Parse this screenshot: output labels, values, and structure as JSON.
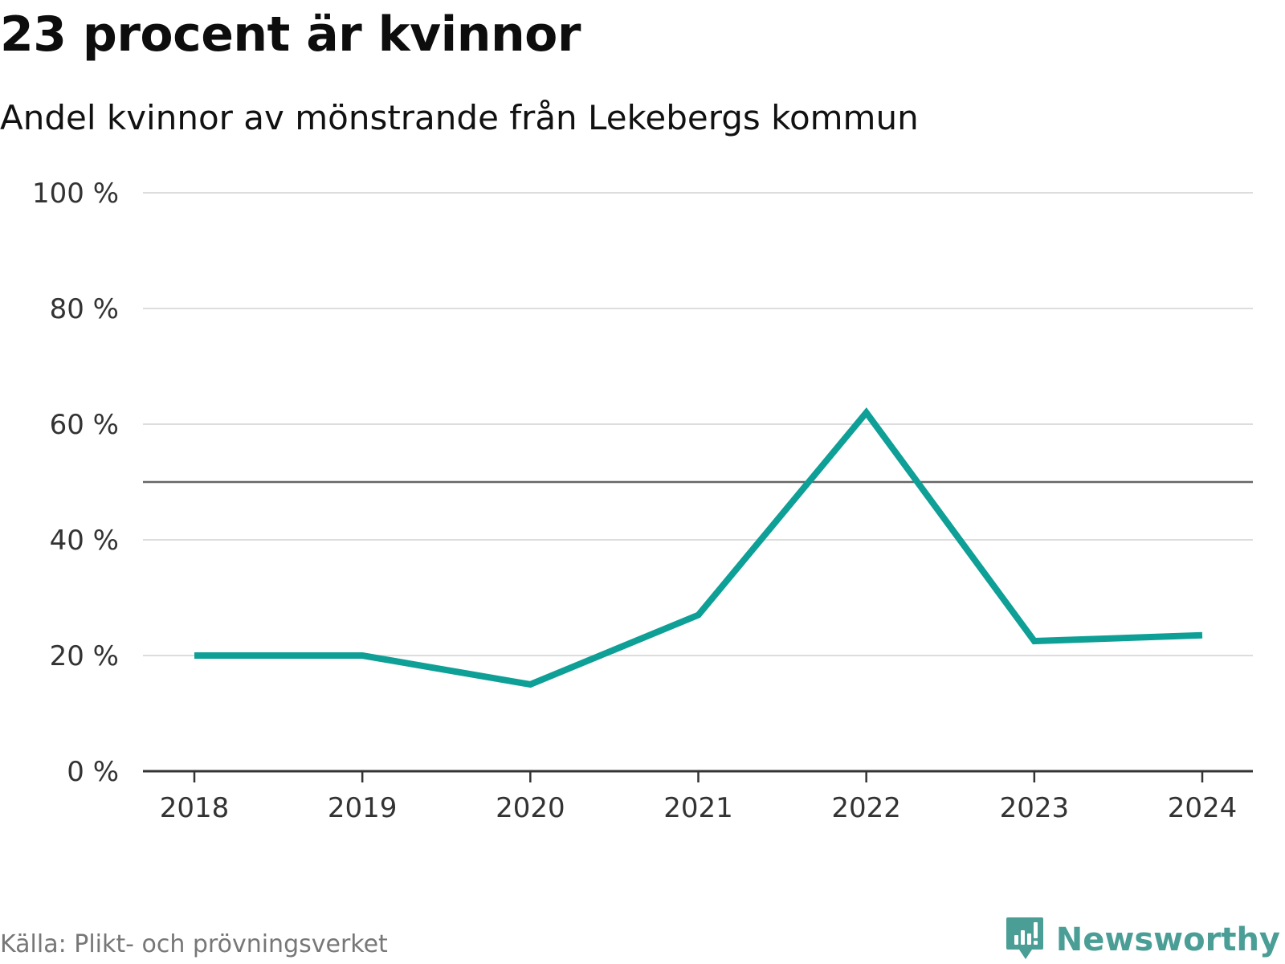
{
  "title": "23 procent är kvinnor",
  "subtitle": "Andel kvinnor av mönstrande från Lekebergs kommun",
  "source": "Källa: Plikt- och prövningsverket",
  "brand": {
    "name": "Newsworthy",
    "logo_icon": "bar-chart-speech-bubble-icon",
    "color": "#4a9e96"
  },
  "colors": {
    "series": "#0e9f96",
    "grid": "#dddddd",
    "reference": "#666666",
    "axis": "#333333"
  },
  "chart_data": {
    "type": "line",
    "title": "23 procent är kvinnor",
    "subtitle": "Andel kvinnor av mönstrande från Lekebergs kommun",
    "xlabel": "",
    "ylabel": "",
    "categories": [
      "2018",
      "2019",
      "2020",
      "2021",
      "2022",
      "2023",
      "2024"
    ],
    "series": [
      {
        "name": "Andel kvinnor",
        "values": [
          20,
          20,
          15,
          27,
          62,
          22.5,
          23.5
        ]
      }
    ],
    "ylim": [
      0,
      100
    ],
    "yticks": [
      0,
      20,
      40,
      60,
      80,
      100
    ],
    "ytick_labels": [
      "0 %",
      "20 %",
      "40 %",
      "60 %",
      "80 %",
      "100 %"
    ],
    "reference_line": 50,
    "grid": true,
    "legend": "none"
  }
}
